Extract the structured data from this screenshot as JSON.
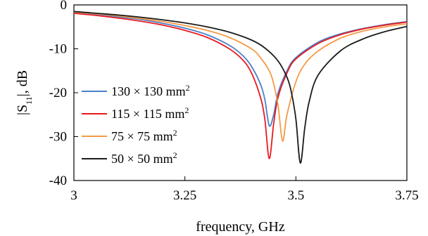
{
  "chart_data": {
    "type": "line",
    "title": "",
    "xlabel": "frequency, GHz",
    "ylabel": {
      "main": "|S",
      "sub": "11",
      "end": "|, dB"
    },
    "xlim": [
      3,
      3.75
    ],
    "ylim": [
      -40,
      0
    ],
    "x_ticks": [
      3,
      3.25,
      3.5,
      3.75
    ],
    "x_tick_labels": [
      "3",
      "3.25",
      "3.5",
      "3.75"
    ],
    "y_ticks": [
      0,
      -10,
      -20,
      -30,
      -40
    ],
    "y_tick_labels": [
      "0",
      "-10",
      "-20",
      "-30",
      "-40"
    ],
    "grid": false,
    "legend_position": "bottom-left",
    "series": [
      {
        "name": "130 × 130 mm",
        "name_sup": "2",
        "color": "#4a7fc8",
        "points": [
          [
            3.0,
            -1.6
          ],
          [
            3.05,
            -2.1
          ],
          [
            3.1,
            -2.7
          ],
          [
            3.15,
            -3.3
          ],
          [
            3.2,
            -4.2
          ],
          [
            3.25,
            -5.3
          ],
          [
            3.3,
            -6.8
          ],
          [
            3.35,
            -9.2
          ],
          [
            3.38,
            -11.5
          ],
          [
            3.4,
            -14.0
          ],
          [
            3.42,
            -18.0
          ],
          [
            3.43,
            -21.5
          ],
          [
            3.44,
            -27.5
          ],
          [
            3.45,
            -25.0
          ],
          [
            3.46,
            -20.0
          ],
          [
            3.48,
            -15.0
          ],
          [
            3.5,
            -12.0
          ],
          [
            3.55,
            -8.5
          ],
          [
            3.6,
            -6.6
          ],
          [
            3.65,
            -5.4
          ],
          [
            3.7,
            -4.5
          ],
          [
            3.75,
            -3.8
          ]
        ]
      },
      {
        "name": "115 × 115 mm",
        "name_sup": "2",
        "color": "#e8191f",
        "points": [
          [
            3.0,
            -1.9
          ],
          [
            3.05,
            -2.4
          ],
          [
            3.1,
            -3.0
          ],
          [
            3.15,
            -3.7
          ],
          [
            3.2,
            -4.6
          ],
          [
            3.25,
            -5.8
          ],
          [
            3.3,
            -7.4
          ],
          [
            3.35,
            -10.0
          ],
          [
            3.38,
            -12.5
          ],
          [
            3.4,
            -15.5
          ],
          [
            3.42,
            -21.0
          ],
          [
            3.43,
            -26.0
          ],
          [
            3.44,
            -35.0
          ],
          [
            3.45,
            -27.0
          ],
          [
            3.46,
            -21.0
          ],
          [
            3.48,
            -15.5
          ],
          [
            3.5,
            -12.3
          ],
          [
            3.55,
            -8.8
          ],
          [
            3.6,
            -6.8
          ],
          [
            3.65,
            -5.5
          ],
          [
            3.7,
            -4.6
          ],
          [
            3.75,
            -3.9
          ]
        ]
      },
      {
        "name": "75 × 75 mm",
        "name_sup": "2",
        "color": "#f59a45",
        "points": [
          [
            3.0,
            -1.6
          ],
          [
            3.05,
            -2.0
          ],
          [
            3.1,
            -2.5
          ],
          [
            3.15,
            -3.1
          ],
          [
            3.2,
            -3.8
          ],
          [
            3.25,
            -4.7
          ],
          [
            3.3,
            -5.8
          ],
          [
            3.35,
            -7.4
          ],
          [
            3.4,
            -10.0
          ],
          [
            3.42,
            -12.0
          ],
          [
            3.44,
            -15.0
          ],
          [
            3.45,
            -18.0
          ],
          [
            3.46,
            -23.0
          ],
          [
            3.47,
            -31.0
          ],
          [
            3.48,
            -25.0
          ],
          [
            3.5,
            -17.5
          ],
          [
            3.52,
            -13.5
          ],
          [
            3.55,
            -10.5
          ],
          [
            3.6,
            -7.6
          ],
          [
            3.65,
            -6.0
          ],
          [
            3.7,
            -5.0
          ],
          [
            3.75,
            -4.3
          ]
        ]
      },
      {
        "name": "50 × 50 mm",
        "name_sup": "2",
        "color": "#1a1a1a",
        "points": [
          [
            3.0,
            -1.5
          ],
          [
            3.05,
            -1.9
          ],
          [
            3.1,
            -2.3
          ],
          [
            3.15,
            -2.8
          ],
          [
            3.2,
            -3.4
          ],
          [
            3.25,
            -4.1
          ],
          [
            3.3,
            -5.0
          ],
          [
            3.35,
            -6.2
          ],
          [
            3.4,
            -8.0
          ],
          [
            3.43,
            -9.8
          ],
          [
            3.46,
            -12.8
          ],
          [
            3.48,
            -16.5
          ],
          [
            3.49,
            -20.0
          ],
          [
            3.5,
            -26.0
          ],
          [
            3.51,
            -36.0
          ],
          [
            3.52,
            -28.0
          ],
          [
            3.53,
            -22.0
          ],
          [
            3.55,
            -16.0
          ],
          [
            3.6,
            -10.5
          ],
          [
            3.65,
            -7.8
          ],
          [
            3.7,
            -6.1
          ],
          [
            3.75,
            -4.9
          ]
        ]
      }
    ]
  }
}
